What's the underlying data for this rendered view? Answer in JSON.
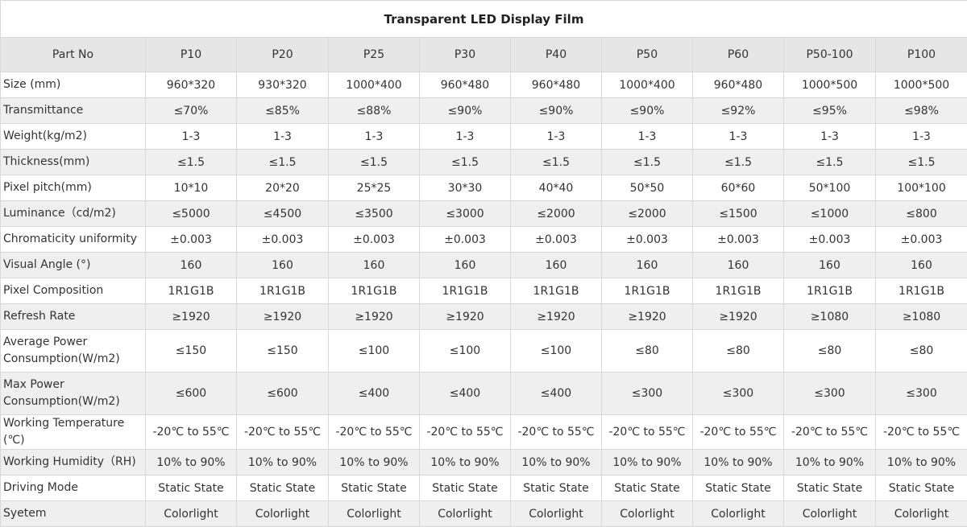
{
  "title": "Transparent LED Display Film",
  "header": {
    "label": "Part No",
    "models": [
      "P10",
      "P20",
      "P25",
      "P30",
      "P40",
      "P50",
      "P60",
      "P50-100",
      "P100"
    ]
  },
  "rows": [
    {
      "label": "Size (mm)",
      "values": [
        "960*320",
        "930*320",
        "1000*400",
        "960*480",
        "960*480",
        "1000*400",
        "960*480",
        "1000*500",
        "1000*500"
      ]
    },
    {
      "label": "Transmittance",
      "values": [
        "≤70%",
        "≤85%",
        "≤88%",
        "≤90%",
        "≤90%",
        "≤90%",
        "≤92%",
        "≤95%",
        "≤98%"
      ]
    },
    {
      "label": "Weight(kg/m2)",
      "values": [
        "1-3",
        "1-3",
        "1-3",
        "1-3",
        "1-3",
        "1-3",
        "1-3",
        "1-3",
        "1-3"
      ]
    },
    {
      "label": "Thickness(mm)",
      "values": [
        "≤1.5",
        "≤1.5",
        "≤1.5",
        "≤1.5",
        "≤1.5",
        "≤1.5",
        "≤1.5",
        "≤1.5",
        "≤1.5"
      ]
    },
    {
      "label": "Pixel pitch(mm)",
      "values": [
        "10*10",
        "20*20",
        "25*25",
        "30*30",
        "40*40",
        "50*50",
        "60*60",
        "50*100",
        "100*100"
      ]
    },
    {
      "label": "Luminance（cd/m2)",
      "values": [
        "≤5000",
        "≤4500",
        "≤3500",
        "≤3000",
        "≤2000",
        "≤2000",
        "≤1500",
        "≤1000",
        "≤800"
      ]
    },
    {
      "label": "Chromaticity uniformity",
      "values": [
        "±0.003",
        "±0.003",
        "±0.003",
        "±0.003",
        "±0.003",
        "±0.003",
        "±0.003",
        "±0.003",
        "±0.003"
      ]
    },
    {
      "label": "Visual Angle (°)",
      "values": [
        "160",
        "160",
        "160",
        "160",
        "160",
        "160",
        "160",
        "160",
        "160"
      ]
    },
    {
      "label": "Pixel Composition",
      "values": [
        "1R1G1B",
        "1R1G1B",
        "1R1G1B",
        "1R1G1B",
        "1R1G1B",
        "1R1G1B",
        "1R1G1B",
        "1R1G1B",
        "1R1G1B"
      ]
    },
    {
      "label": "Refresh Rate",
      "values": [
        "≥1920",
        "≥1920",
        "≥1920",
        "≥1920",
        "≥1920",
        "≥1920",
        "≥1920",
        "≥1080",
        "≥1080"
      ]
    },
    {
      "label": "Average Power Consumption(W/m2)",
      "values": [
        "≤150",
        "≤150",
        "≤100",
        "≤100",
        "≤100",
        "≤80",
        "≤80",
        "≤80",
        "≤80"
      ]
    },
    {
      "label": "Max Power Consumption(W/m2)",
      "values": [
        "≤600",
        "≤600",
        "≤400",
        "≤400",
        "≤400",
        "≤300",
        "≤300",
        "≤300",
        "≤300"
      ]
    },
    {
      "label": "Working Temperature (℃)",
      "values": [
        "-20℃ to 55℃",
        "-20℃ to 55℃",
        "-20℃ to 55℃",
        "-20℃ to 55℃",
        "-20℃ to 55℃",
        "-20℃ to 55℃",
        "-20℃ to 55℃",
        "-20℃ to 55℃",
        "-20℃ to 55℃"
      ]
    },
    {
      "label": "Working Humidity（RH)",
      "values": [
        "10% to 90%",
        "10% to 90%",
        "10% to 90%",
        "10% to 90%",
        "10% to 90%",
        "10% to 90%",
        "10% to 90%",
        "10% to 90%",
        "10% to 90%"
      ]
    },
    {
      "label": "Driving Mode",
      "values": [
        "Static State",
        "Static State",
        "Static State",
        "Static State",
        "Static State",
        "Static State",
        "Static State",
        "Static State",
        "Static State"
      ]
    },
    {
      "label": "Syetem",
      "values": [
        "Colorlight",
        "Colorlight",
        "Colorlight",
        "Colorlight",
        "Colorlight",
        "Colorlight",
        "Colorlight",
        "Colorlight",
        "Colorlight"
      ]
    }
  ]
}
